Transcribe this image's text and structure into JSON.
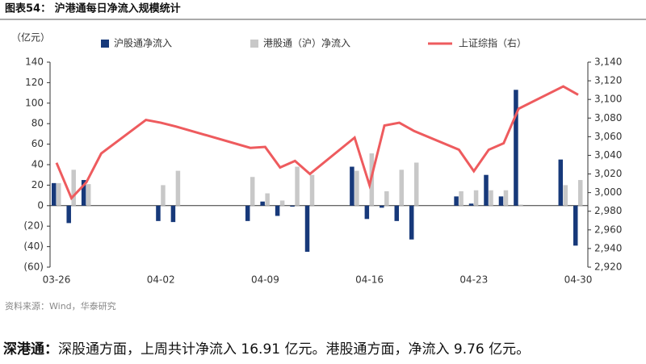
{
  "chart_data": {
    "type": "bar-line",
    "title": "图表54：  沪港通每日净流入规模统计",
    "y_label": "（亿元）",
    "source": "资料来源：Wind，华泰研究",
    "x": [
      "03-26",
      "03-27",
      "03-28",
      "03-29",
      "04-01",
      "04-02",
      "04-03",
      "04-08",
      "04-09",
      "04-10",
      "04-11",
      "04-12",
      "04-15",
      "04-16",
      "04-17",
      "04-18",
      "04-19",
      "04-22",
      "04-23",
      "04-24",
      "04-25",
      "04-26",
      "04-29",
      "04-30"
    ],
    "xticks": [
      "03-26",
      "04-02",
      "04-09",
      "04-16",
      "04-23",
      "04-30"
    ],
    "series": [
      {
        "name": "沪股通净流入",
        "type": "bar",
        "color": "#17397a",
        "values": [
          22,
          -17,
          25,
          null,
          null,
          -15,
          -16,
          -15,
          4,
          -10,
          -1,
          -45,
          38,
          -13,
          -2,
          -15,
          -33,
          9,
          2,
          30,
          9,
          113,
          45,
          -39
        ]
      },
      {
        "name": "港股通（沪）净流入",
        "type": "bar",
        "color": "#c8c8c8",
        "values": [
          22,
          35,
          21,
          null,
          null,
          20,
          34,
          28,
          12,
          5,
          38,
          30,
          34,
          51,
          14,
          35,
          42,
          14,
          15,
          15,
          15,
          1,
          20,
          25
        ]
      },
      {
        "name": "上证综指（右）",
        "type": "line",
        "color": "#ee5b5e",
        "axis": "y2",
        "values": [
          3032,
          2994,
          3011,
          3042,
          3078,
          3075,
          3071,
          3048,
          3049,
          3027,
          3034,
          3020,
          3059,
          3008,
          3072,
          3075,
          3066,
          3046,
          3023,
          3046,
          3053,
          3090,
          3114,
          3105
        ]
      }
    ],
    "ylim": [
      -60,
      140
    ],
    "yticks": [
      {
        "value": -60,
        "label": "(60)"
      },
      {
        "value": -40,
        "label": "(40)"
      },
      {
        "value": -20,
        "label": "(20)"
      },
      0,
      20,
      40,
      60,
      80,
      100,
      120,
      140
    ],
    "y2lim": [
      2920,
      3140
    ],
    "y2ticks": [
      {
        "value": 2920,
        "label": "2,920"
      },
      {
        "value": 2940,
        "label": "2,940"
      },
      {
        "value": 2960,
        "label": "2,960"
      },
      {
        "value": 2980,
        "label": "2,980"
      },
      {
        "value": 3000,
        "label": "3,000"
      },
      {
        "value": 3020,
        "label": "3,020"
      },
      {
        "value": 3040,
        "label": "3,040"
      },
      {
        "value": 3060,
        "label": "3,060"
      },
      {
        "value": 3080,
        "label": "3,080"
      },
      {
        "value": 3100,
        "label": "3,100"
      },
      {
        "value": 3120,
        "label": "3,120"
      },
      {
        "value": 3140,
        "label": "3,140"
      }
    ],
    "legend": "top"
  },
  "footer": {
    "lead": "深港通：",
    "text": "深股通方面，上周共计净流入 16.91 亿元。港股通方面，净流入 9.76 亿元。"
  }
}
